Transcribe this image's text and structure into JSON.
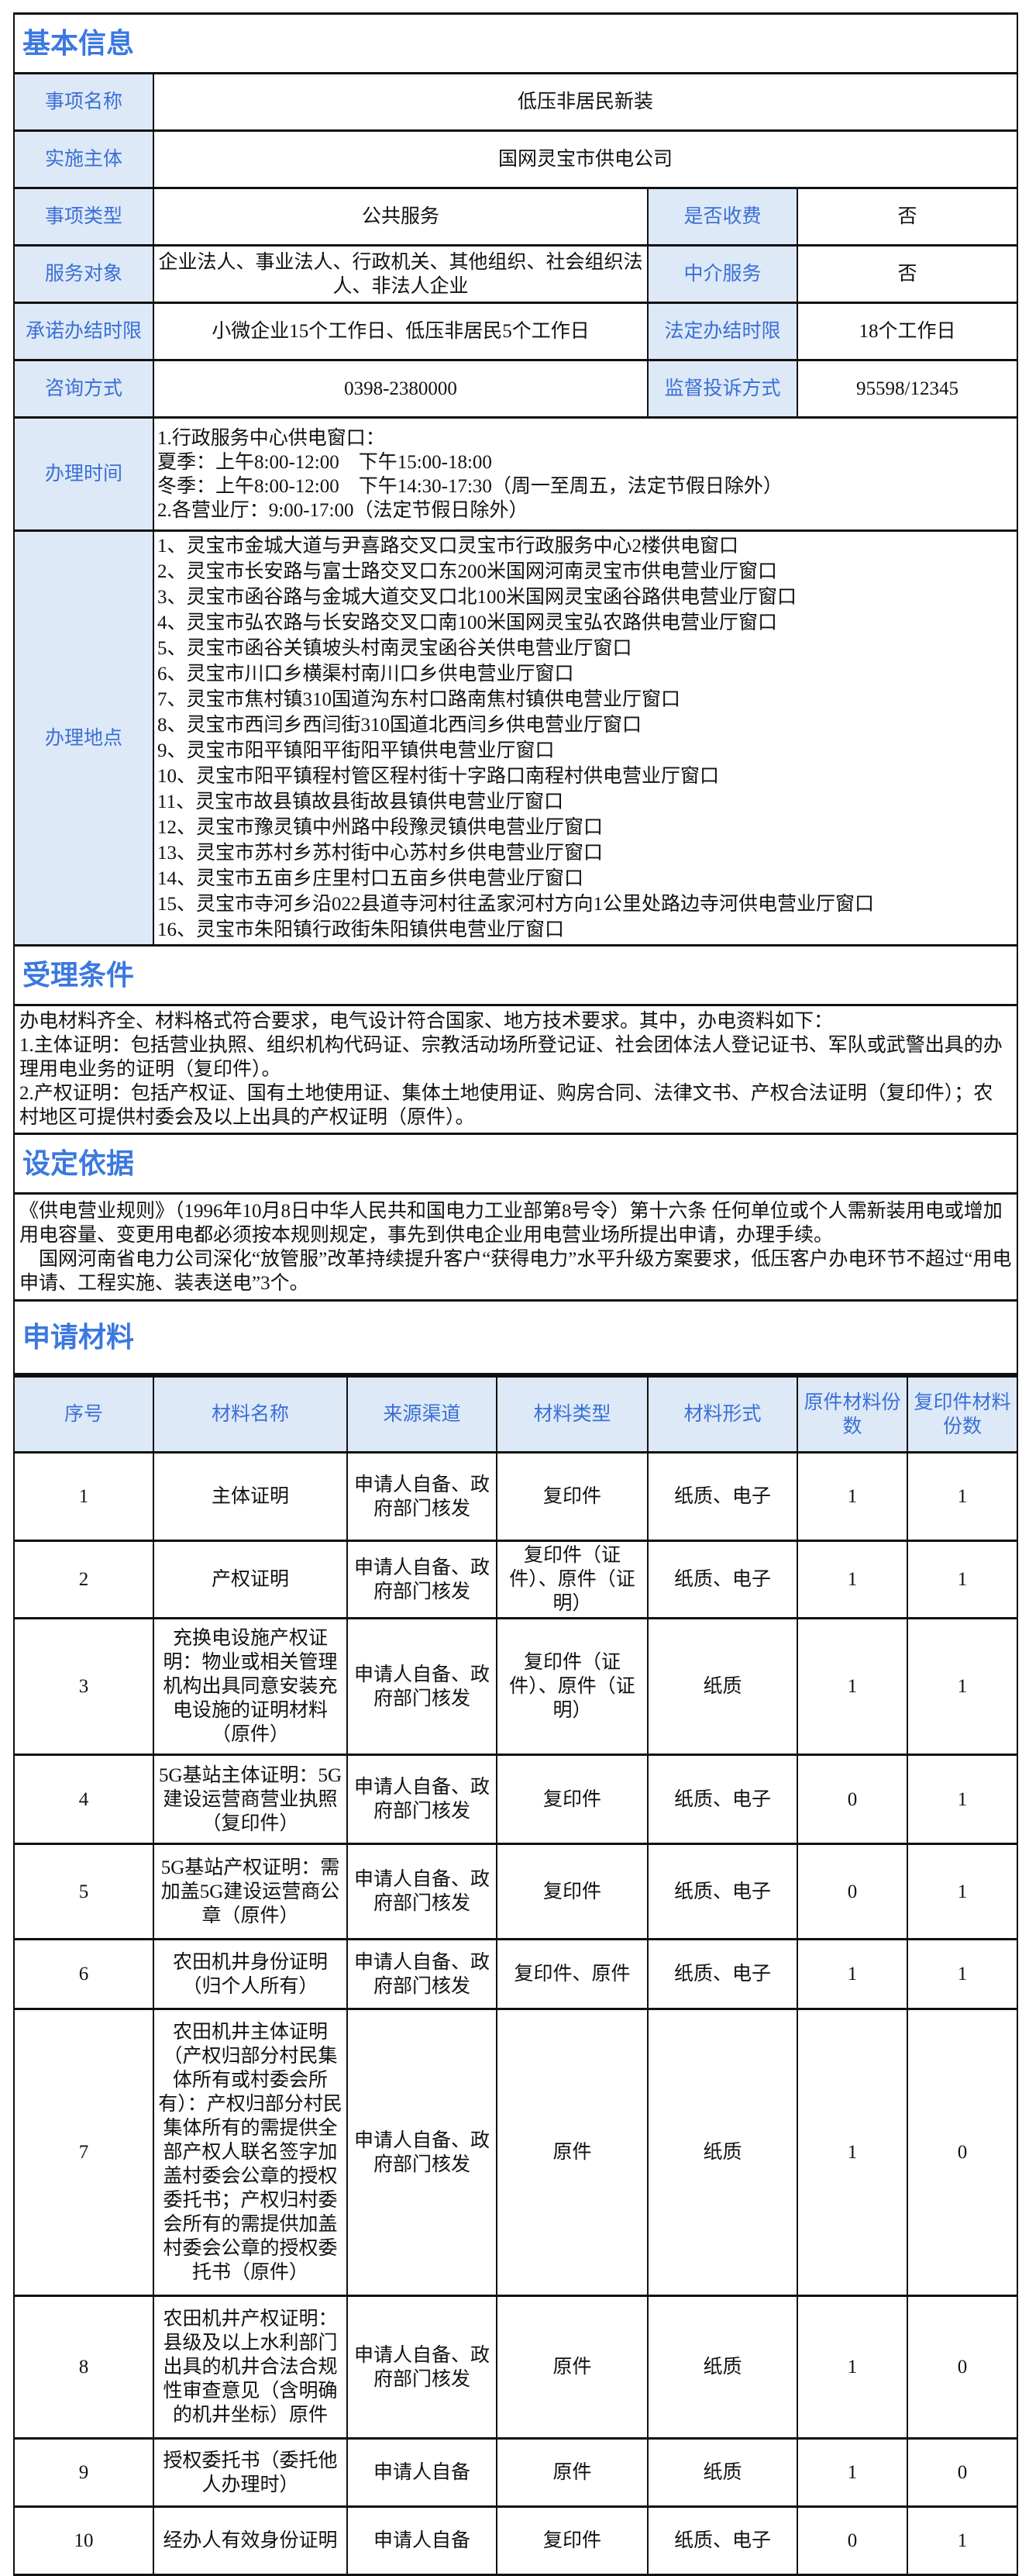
{
  "sections": {
    "basic": "基本信息",
    "conditions": "受理条件",
    "basis": "设定依据",
    "materials": "申请材料"
  },
  "basic": {
    "item_name_label": "事项名称",
    "item_name": "低压非居民新装",
    "agency_label": "实施主体",
    "agency": "国网灵宝市供电公司",
    "type_label": "事项类型",
    "type": "公共服务",
    "fee_label": "是否收费",
    "fee": "否",
    "target_label": "服务对象",
    "target": "企业法人、事业法人、行政机关、其他组织、社会组织法人、非法人企业",
    "intermediary_label": "中介服务",
    "intermediary": "否",
    "promised_label": "承诺办结时限",
    "promised": "小微企业15个工作日、低压非居民5个工作日",
    "legal_label": "法定办结时限",
    "legal": "18个工作日",
    "consult_label": "咨询方式",
    "consult": "0398-2380000",
    "complaint_label": "监督投诉方式",
    "complaint": "95598/12345",
    "hours_label": "办理时间",
    "hours": "1.行政服务中心供电窗口：\n夏季：上午8:00-12:00　下午15:00-18:00\n冬季：上午8:00-12:00　下午14:30-17:30（周一至周五，法定节假日除外）\n2.各营业厅：9:00-17:00（法定节假日除外）",
    "locations_label": "办理地点",
    "locations": "1、灵宝市金城大道与尹喜路交叉口灵宝市行政服务中心2楼供电窗口\n2、灵宝市长安路与富士路交叉口东200米国网河南灵宝市供电营业厅窗口\n3、灵宝市函谷路与金城大道交叉口北100米国网灵宝函谷路供电营业厅窗口\n4、灵宝市弘农路与长安路交叉口南100米国网灵宝弘农路供电营业厅窗口\n5、灵宝市函谷关镇坡头村南灵宝函谷关供电营业厅窗口\n6、灵宝市川口乡横渠村南川口乡供电营业厅窗口\n7、灵宝市焦村镇310国道沟东村口路南焦村镇供电营业厅窗口\n8、灵宝市西闫乡西闫街310国道北西闫乡供电营业厅窗口\n9、灵宝市阳平镇阳平街阳平镇供电营业厅窗口\n10、灵宝市阳平镇程村管区程村街十字路口南程村供电营业厅窗口\n11、灵宝市故县镇故县街故县镇供电营业厅窗口\n12、灵宝市豫灵镇中州路中段豫灵镇供电营业厅窗口\n13、灵宝市苏村乡苏村街中心苏村乡供电营业厅窗口\n14、灵宝市五亩乡庄里村口五亩乡供电营业厅窗口\n15、灵宝市寺河乡沿022县道寺河村往孟家河村方向1公里处路边寺河供电营业厅窗口\n16、灵宝市朱阳镇行政街朱阳镇供电营业厅窗口"
  },
  "conditions_text": "办电材料齐全、材料格式符合要求，电气设计符合国家、地方技术要求。其中，办电资料如下：\n1.主体证明：包括营业执照、组织机构代码证、宗教活动场所登记证、社会团体法人登记证书、军队或武警出具的办理用电业务的证明（复印件）。\n2.产权证明：包括产权证、国有土地使用证、集体土地使用证、购房合同、法律文书、产权合法证明（复印件）；农村地区可提供村委会及以上出具的产权证明（原件）。",
  "basis_text": "《供电营业规则》（1996年10月8日中华人民共和国电力工业部第8号令）第十六条 任何单位或个人需新装用电或增加用电容量、变更用电都必须按本规则规定，事先到供电企业用电营业场所提出申请，办理手续。\n　国网河南省电力公司深化“放管服”改革持续提升客户“获得电力”水平升级方案要求，低压客户办电环节不超过“用电申请、工程实施、装表送电”3个。",
  "materials": {
    "headers": [
      "序号",
      "材料名称",
      "来源渠道",
      "材料类型",
      "材料形式",
      "原件材料份数",
      "复印件材料份数"
    ],
    "rows": [
      [
        "1",
        "主体证明",
        "申请人自备、政府部门核发",
        "复印件",
        "纸质、电子",
        "1",
        "1"
      ],
      [
        "2",
        "产权证明",
        "申请人自备、政府部门核发",
        "复印件（证件）、原件（证明）",
        "纸质、电子",
        "1",
        "1"
      ],
      [
        "3",
        "充换电设施产权证明：物业或相关管理机构出具同意安装充电设施的证明材料（原件）",
        "申请人自备、政府部门核发",
        "复印件（证件）、原件（证明）",
        "纸质",
        "1",
        "1"
      ],
      [
        "4",
        "5G基站主体证明：5G建设运营商营业执照（复印件）",
        "申请人自备、政府部门核发",
        "复印件",
        "纸质、电子",
        "0",
        "1"
      ],
      [
        "5",
        "5G基站产权证明：需加盖5G建设运营商公章（原件）",
        "申请人自备、政府部门核发",
        "复印件",
        "纸质、电子",
        "0",
        "1"
      ],
      [
        "6",
        "农田机井身份证明（归个人所有）",
        "申请人自备、政府部门核发",
        "复印件、原件",
        "纸质、电子",
        "1",
        "1"
      ],
      [
        "7",
        "农田机井主体证明（产权归部分村民集体所有或村委会所有）：产权归部分村民集体所有的需提供全部产权人联名签字加盖村委会公章的授权委托书；产权归村委会所有的需提供加盖村委会公章的授权委托书（原件）",
        "申请人自备、政府部门核发",
        "原件",
        "纸质",
        "1",
        "0"
      ],
      [
        "8",
        "农田机井产权证明：县级及以上水利部门出具的机井合法合规性审查意见（含明确的机井坐标）原件",
        "申请人自备、政府部门核发",
        "原件",
        "纸质",
        "1",
        "0"
      ],
      [
        "9",
        "授权委托书（委托他人办理时）",
        "申请人自备",
        "原件",
        "纸质",
        "1",
        "0"
      ],
      [
        "10",
        "经办人有效身份证明",
        "申请人自备",
        "复印件",
        "纸质、电子",
        "0",
        "1"
      ]
    ]
  },
  "colors": {
    "label_bg": "#dde9f7",
    "label_text": "#3b6fd6",
    "section_title": "#3b78e0"
  }
}
